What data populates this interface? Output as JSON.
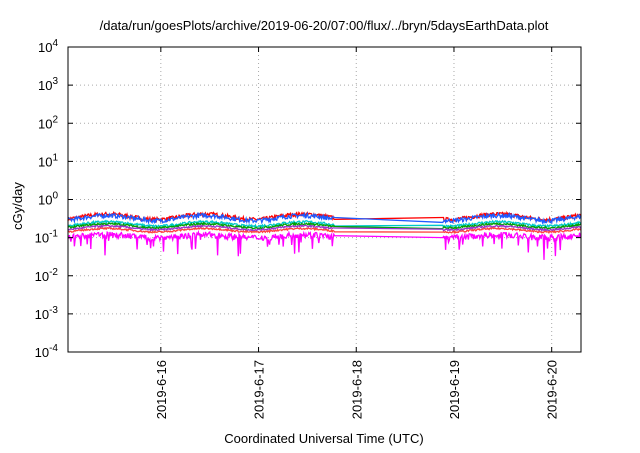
{
  "chart_data": {
    "type": "line",
    "title": "/data/run/goesPlots/archive/2019-06-20/07:00/flux/../bryn/5daysEarthData.plot",
    "xlabel": "Coordinated Universal Time (UTC)",
    "ylabel": "cGy/day",
    "yscale": "log",
    "ylim": [
      0.0001,
      10000
    ],
    "xlim": [
      15.05,
      20.3
    ],
    "grid": true,
    "x_ticks": [
      {
        "value": 16,
        "label": "2019-6-16"
      },
      {
        "value": 17,
        "label": "2019-6-17"
      },
      {
        "value": 18,
        "label": "2019-6-18"
      },
      {
        "value": 19,
        "label": "2019-6-19"
      },
      {
        "value": 20,
        "label": "2019-6-20"
      }
    ],
    "y_ticks": [
      {
        "value": 0.0001,
        "base": "10",
        "exp": "-4"
      },
      {
        "value": 0.001,
        "base": "10",
        "exp": "-3"
      },
      {
        "value": 0.01,
        "base": "10",
        "exp": "-2"
      },
      {
        "value": 0.1,
        "base": "10",
        "exp": "-1"
      },
      {
        "value": 1,
        "base": "10",
        "exp": "0"
      },
      {
        "value": 10,
        "base": "10",
        "exp": "1"
      },
      {
        "value": 100,
        "base": "10",
        "exp": "2"
      },
      {
        "value": 1000,
        "base": "10",
        "exp": "3"
      },
      {
        "value": 10000,
        "base": "10",
        "exp": "4"
      }
    ],
    "data_gap": [
      17.78,
      18.88
    ],
    "series": [
      {
        "color": "#ff0000",
        "base": 0.3,
        "amp": 0.38,
        "noise": 0.12,
        "spikes": false
      },
      {
        "color": "#1e5bff",
        "base": 0.28,
        "amp": 0.36,
        "noise": 0.13,
        "spikes": false
      },
      {
        "color": "#00c8c8",
        "base": 0.2,
        "amp": 0.3,
        "noise": 0.07,
        "spikes": false
      },
      {
        "color": "#00a000",
        "base": 0.18,
        "amp": 0.28,
        "noise": 0.06,
        "spikes": false
      },
      {
        "color": "#9a32cd",
        "base": 0.16,
        "amp": 0.26,
        "noise": 0.05,
        "spikes": false
      },
      {
        "color": "#ff4040",
        "base": 0.14,
        "amp": 0.24,
        "noise": 0.05,
        "spikes": false
      },
      {
        "color": "#ff00ff",
        "base": 0.1,
        "amp": 0.2,
        "noise": 0.18,
        "spikes": true
      }
    ]
  }
}
